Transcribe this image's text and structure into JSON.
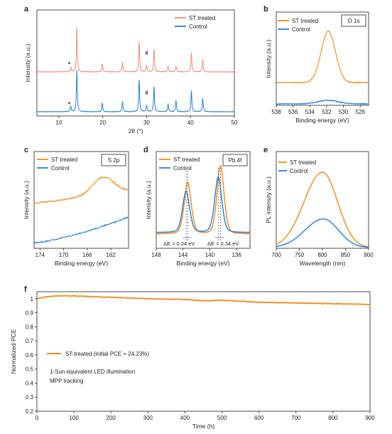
{
  "colors": {
    "st_xrd": "#f08c7a",
    "control": "#2a7fd4",
    "st": "#f5891e",
    "axis": "#222222"
  },
  "chart_data": [
    {
      "panel": "a",
      "type": "line",
      "xlabel": "2θ (°)",
      "ylabel": "Intensity (a.u.)",
      "xlim": [
        5,
        50
      ],
      "xticks": [
        10,
        20,
        30,
        40,
        50
      ],
      "legend": "top-right",
      "markers": [
        {
          "text": "*",
          "x": 12.7,
          "series": "ST treated"
        },
        {
          "text": "#",
          "x": 30.0,
          "series": "ST treated"
        },
        {
          "text": "*",
          "x": 12.7,
          "series": "Control"
        },
        {
          "text": "#",
          "x": 30.0,
          "series": "Control"
        }
      ],
      "series": [
        {
          "name": "ST treated",
          "color": "#f08c7a",
          "peaks": [
            [
              12.7,
              0.06
            ],
            [
              14.1,
              0.56
            ],
            [
              19.9,
              0.1
            ],
            [
              24.5,
              0.12
            ],
            [
              28.3,
              0.38
            ],
            [
              30.0,
              0.08
            ],
            [
              31.7,
              0.28
            ],
            [
              34.9,
              0.07
            ],
            [
              36.7,
              0.07
            ],
            [
              40.2,
              0.24
            ],
            [
              42.8,
              0.15
            ]
          ]
        },
        {
          "name": "Control",
          "color": "#2a7fd4",
          "peaks": [
            [
              12.7,
              0.07
            ],
            [
              14.1,
              0.52
            ],
            [
              19.9,
              0.11
            ],
            [
              24.5,
              0.13
            ],
            [
              28.3,
              0.4
            ],
            [
              30.0,
              0.08
            ],
            [
              31.7,
              0.31
            ],
            [
              34.9,
              0.1
            ],
            [
              36.7,
              0.14
            ],
            [
              40.2,
              0.26
            ],
            [
              42.8,
              0.17
            ]
          ]
        }
      ]
    },
    {
      "panel": "b",
      "type": "line",
      "title": "O 1s",
      "xlabel": "Binding energy (eV)",
      "ylabel": "Intensity (a.u.)",
      "xlim": [
        538,
        527
      ],
      "xticks": [
        538,
        536,
        534,
        532,
        530,
        528
      ],
      "legend": "top-left",
      "series": [
        {
          "name": "ST treated",
          "color": "#f5891e",
          "peak_x": 531.8,
          "peak_height": 0.72,
          "width": 0.85
        },
        {
          "name": "Control",
          "color": "#2a7fd4",
          "peak_x": 531.8,
          "peak_height": 0.05,
          "width": 1.2
        }
      ]
    },
    {
      "panel": "c",
      "type": "line",
      "title": "S 2p",
      "xlabel": "Binding energy (eV)",
      "ylabel": "Intensity (a.u.)",
      "xlim": [
        175,
        159
      ],
      "xticks": [
        174,
        170,
        166,
        162
      ],
      "legend": "top-left",
      "series": [
        {
          "name": "ST treated",
          "color": "#f5891e",
          "peak_x": 163.5,
          "peak_height": 0.16
        },
        {
          "name": "Control",
          "color": "#2a7fd4",
          "peak_x": 163.5,
          "peak_height": 0.0
        }
      ]
    },
    {
      "panel": "d",
      "type": "line",
      "title": "Pb 4f",
      "xlabel": "Binding energy (eV)",
      "ylabel": "Intensity (a.u.)",
      "xlim": [
        148,
        134
      ],
      "xticks": [
        148,
        144,
        140,
        136
      ],
      "legend": "top-left",
      "annotations": [
        "ΔE = 0.24 eV",
        "ΔE = 0.34 eV"
      ],
      "series": [
        {
          "name": "ST treated",
          "color": "#f5891e",
          "peaks": [
            [
              143.3,
              0.72
            ],
            [
              138.4,
              0.96
            ]
          ]
        },
        {
          "name": "Control",
          "color": "#2a7fd4",
          "peaks": [
            [
              143.54,
              0.58
            ],
            [
              138.74,
              0.78
            ]
          ]
        }
      ]
    },
    {
      "panel": "e",
      "type": "line",
      "xlabel": "Wavelength (nm)",
      "ylabel": "PL intensity (a.u.)",
      "xlim": [
        700,
        900
      ],
      "xticks": [
        700,
        750,
        800,
        850,
        900
      ],
      "legend": "top-left",
      "series": [
        {
          "name": "ST treated",
          "color": "#f5891e",
          "peak_x": 800,
          "peak_height": 1.0
        },
        {
          "name": "Control",
          "color": "#2a7fd4",
          "peak_x": 802,
          "peak_height": 0.38
        }
      ]
    },
    {
      "panel": "f",
      "type": "line",
      "xlabel": "Time (h)",
      "ylabel": "Normalized PCE",
      "xlim": [
        0,
        900
      ],
      "ylim": [
        0.2,
        1.05
      ],
      "xticks": [
        0,
        100,
        200,
        300,
        400,
        500,
        600,
        700,
        800,
        900
      ],
      "yticks": [
        0.2,
        0.3,
        0.4,
        0.5,
        0.6,
        0.7,
        0.8,
        0.9,
        1.0
      ],
      "legend": "middle-left",
      "notes": [
        "1-Sun equivalent LED illumination",
        "MPP tracking"
      ],
      "series": [
        {
          "name": "ST-treated (initial PCE = 24.23%)",
          "color": "#f5891e",
          "x": [
            0,
            25,
            50,
            100,
            150,
            200,
            300,
            400,
            450,
            500,
            600,
            700,
            800,
            900
          ],
          "y": [
            1.0,
            1.015,
            1.02,
            1.02,
            1.015,
            1.01,
            1.0,
            0.995,
            0.985,
            0.99,
            0.975,
            0.97,
            0.965,
            0.96
          ]
        }
      ]
    }
  ]
}
